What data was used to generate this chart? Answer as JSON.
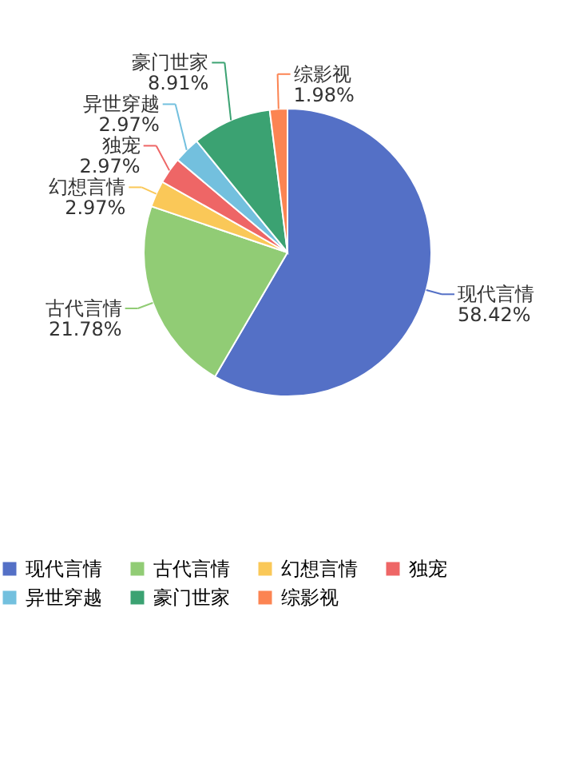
{
  "chart_data": {
    "type": "pie",
    "categories": [
      "现代言情",
      "古代言情",
      "幻想言情",
      "独宠",
      "异世穿越",
      "豪门世家",
      "综影视"
    ],
    "values": [
      58.42,
      21.78,
      2.97,
      2.97,
      2.97,
      8.91,
      1.98
    ],
    "value_labels": [
      "58.42%",
      "21.78%",
      "2.97%",
      "2.97%",
      "2.97%",
      "8.91%",
      "1.98%"
    ],
    "colors": [
      "#5470c6",
      "#91cc75",
      "#fac858",
      "#ee6666",
      "#73c0de",
      "#3ba272",
      "#fc8452"
    ],
    "legend": "bottom"
  }
}
